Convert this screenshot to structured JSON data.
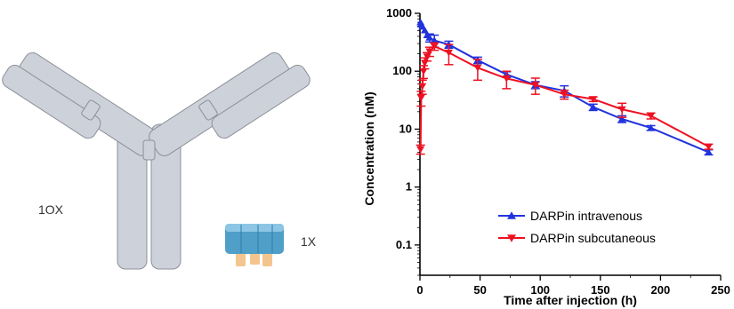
{
  "illustration": {
    "antibody_label": "1OX",
    "darpin_label": "1X",
    "colors": {
      "antibody_fill": "#cdd1d9",
      "antibody_stroke": "#8c9199",
      "darpin_blue": "#4f9fc9",
      "darpin_orange": "#f4c58e"
    }
  },
  "chart_data": {
    "type": "line",
    "xlabel": "Time after injection (h)",
    "ylabel": "Concentration (nM)",
    "xlim": [
      0,
      250
    ],
    "ylim": [
      0.03,
      1000
    ],
    "yscale": "log",
    "x_ticks": [
      0,
      50,
      100,
      150,
      200,
      250
    ],
    "y_ticks": [
      1000,
      100,
      10,
      1,
      0.1
    ],
    "y_tick_labels": [
      "1000",
      "100",
      "10",
      "1",
      "0.1"
    ],
    "grid": false,
    "legend_position": "bottom-right",
    "series": [
      {
        "name": "DARPin intravenous",
        "color": "#2233dd",
        "marker": "triangle-up",
        "x": [
          0.5,
          1,
          2,
          4,
          6,
          8,
          12,
          24,
          48,
          72,
          96,
          120,
          144,
          168,
          192,
          240
        ],
        "y": [
          700,
          640,
          590,
          510,
          420,
          380,
          340,
          290,
          155,
          88,
          58,
          46,
          24,
          15,
          10.5,
          4
        ],
        "err": [
          0,
          0,
          0,
          0,
          0,
          60,
          80,
          40,
          20,
          10,
          8,
          10,
          3,
          2,
          1,
          0.4
        ]
      },
      {
        "name": "DARPin subcutaneous",
        "color": "#ee1122",
        "marker": "triangle-down",
        "x": [
          0.5,
          1,
          2,
          3,
          4,
          6,
          8,
          12,
          24,
          48,
          72,
          96,
          120,
          144,
          168,
          192,
          240
        ],
        "y": [
          4.5,
          35,
          55,
          100,
          140,
          180,
          220,
          270,
          210,
          115,
          75,
          58,
          40,
          33,
          22,
          17,
          5
        ],
        "err": [
          0.8,
          10,
          15,
          25,
          30,
          30,
          40,
          40,
          80,
          45,
          25,
          18,
          7,
          3,
          6,
          2,
          0.5
        ]
      }
    ]
  }
}
